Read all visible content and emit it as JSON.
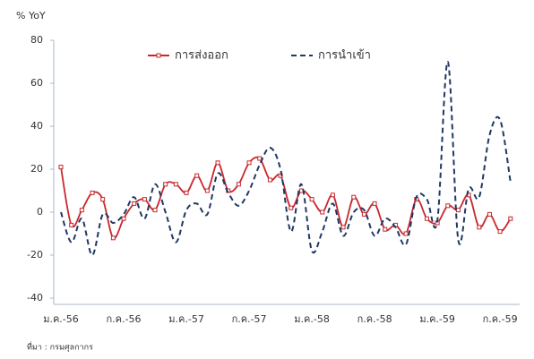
{
  "chart_data": {
    "type": "line",
    "y_label": "% YoY",
    "source": "ที่มา : กรมศุลกากร",
    "categories": [
      "ม.ค.-56",
      null,
      null,
      null,
      null,
      null,
      "ก.ค.-56",
      null,
      null,
      null,
      null,
      null,
      "ม.ค.-57",
      null,
      null,
      null,
      null,
      null,
      "ก.ค.-57",
      null,
      null,
      null,
      null,
      null,
      "ม.ค.-58",
      null,
      null,
      null,
      null,
      null,
      "ก.ค.-58",
      null,
      null,
      null,
      null,
      null,
      "ม.ค.-59",
      null,
      null,
      null,
      null,
      null,
      "ก.ค.-59",
      null
    ],
    "series": [
      {
        "name": "การส่งออก",
        "color": "#c8282d",
        "style": "solid-marker",
        "values": [
          21,
          -6,
          1,
          9,
          6,
          -12,
          -3,
          4,
          6,
          1,
          13,
          13,
          9,
          17,
          10,
          23,
          10,
          13,
          23,
          25,
          15,
          17,
          2,
          10,
          6,
          0,
          8,
          -7,
          7,
          -1,
          4,
          -8,
          -6,
          -10,
          6,
          -3,
          -5,
          3,
          1,
          8,
          -7,
          -1,
          -9,
          -3
        ]
      },
      {
        "name": "การนำเข้า",
        "color": "#1f3864",
        "style": "dashed",
        "values": [
          0,
          -14,
          -3,
          -20,
          -1,
          -5,
          -1,
          7,
          -3,
          13,
          0,
          -14,
          1,
          4,
          -1,
          18,
          9,
          3,
          10,
          22,
          30,
          20,
          -9,
          13,
          -18,
          -9,
          4,
          -11,
          0,
          1,
          -11,
          -3,
          -7,
          -15,
          7,
          6,
          -4,
          70,
          -13,
          11,
          7,
          36,
          43,
          14
        ]
      }
    ],
    "ylim": [
      -40,
      80
    ],
    "yticks": [
      -40,
      -20,
      0,
      20,
      40,
      60,
      80
    ],
    "grid": false
  }
}
